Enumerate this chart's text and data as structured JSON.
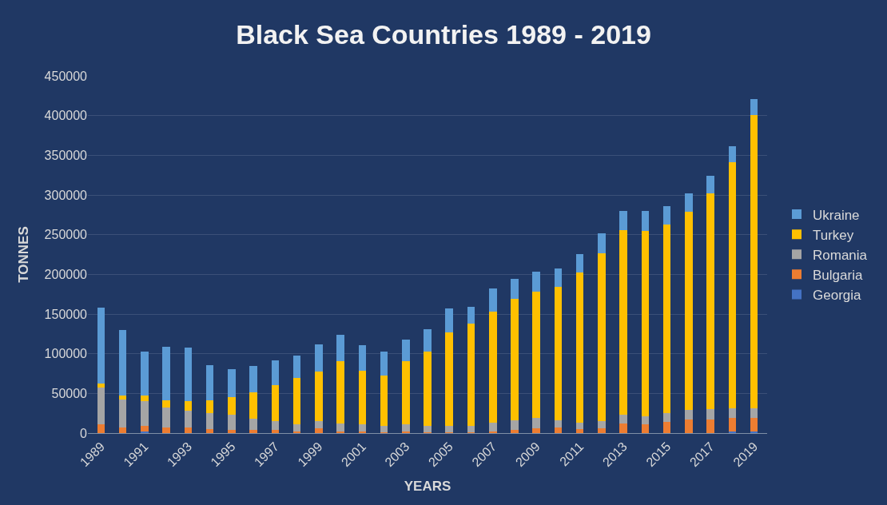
{
  "chart_data": {
    "type": "bar",
    "title": "Black Sea Countries 1989 - 2019",
    "xlabel": "YEARS",
    "ylabel": "TONNES",
    "stacked": true,
    "categories": [
      "1989",
      null,
      "1991",
      null,
      "1993",
      null,
      "1995",
      null,
      "1997",
      null,
      "1999",
      null,
      "2001",
      null,
      "2003",
      null,
      "2005",
      null,
      "2007",
      null,
      "2009",
      null,
      "2011",
      null,
      "2013",
      null,
      "2015",
      null,
      "2017",
      null,
      "2019"
    ],
    "series": [
      {
        "name": "Georgia",
        "color": "#4472c4",
        "values": [
          null,
          0,
          2000,
          0,
          0,
          0,
          0,
          0,
          0,
          0,
          0,
          0,
          0,
          0,
          0,
          0,
          0,
          0,
          0,
          0,
          0,
          0,
          0,
          0,
          0,
          0,
          0,
          0,
          0,
          2000,
          2000
        ]
      },
      {
        "name": "Bulgaria",
        "color": "#ed7d31",
        "values": [
          11000,
          7000,
          7000,
          7000,
          7000,
          5000,
          4000,
          4000,
          4000,
          2000,
          6000,
          2000,
          2000,
          1000,
          2000,
          1000,
          1000,
          1000,
          2000,
          4000,
          6000,
          7000,
          5000,
          6000,
          12000,
          11000,
          14000,
          17000,
          17000,
          17000,
          17000
        ]
      },
      {
        "name": "Romania",
        "color": "#a5a5a5",
        "values": [
          46000,
          35000,
          31000,
          25000,
          21000,
          20000,
          19000,
          14000,
          11000,
          9000,
          9000,
          10000,
          9000,
          8000,
          9000,
          8000,
          8000,
          8000,
          11000,
          12000,
          13000,
          9000,
          8000,
          9000,
          11000,
          10000,
          11000,
          12000,
          13000,
          12000,
          12000
        ]
      },
      {
        "name": "Turkey",
        "color": "#ffc000",
        "values": [
          5000,
          5000,
          7000,
          9000,
          12000,
          16000,
          22000,
          33000,
          45000,
          58000,
          63000,
          79000,
          68000,
          63000,
          80000,
          94000,
          118000,
          129000,
          140000,
          153000,
          159000,
          168000,
          189000,
          212000,
          233000,
          234000,
          238000,
          250000,
          272000,
          310000,
          370000
        ]
      },
      {
        "name": "Ukraine",
        "color": "#5b9bd5",
        "values": [
          96000,
          83000,
          56000,
          68000,
          68000,
          45000,
          36000,
          34000,
          32000,
          29000,
          34000,
          33000,
          32000,
          31000,
          27000,
          28000,
          30000,
          21000,
          29000,
          25000,
          25000,
          23000,
          24000,
          25000,
          24000,
          25000,
          23000,
          23000,
          22000,
          20000,
          20000
        ]
      }
    ],
    "ylim": [
      0,
      450000
    ],
    "yticks": [
      0,
      50000,
      100000,
      150000,
      200000,
      250000,
      300000,
      350000,
      400000,
      450000
    ],
    "grid": "y",
    "legend": "right"
  }
}
